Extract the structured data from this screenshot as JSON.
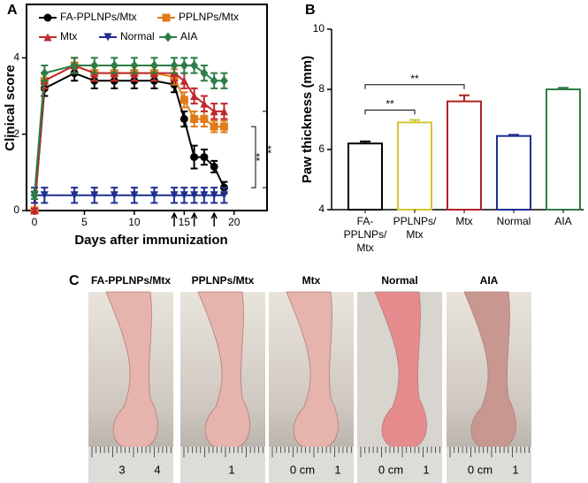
{
  "chart_data": [
    {
      "type": "line",
      "panel": "A",
      "xlabel": "Days after immunization",
      "ylabel": "Clinical score",
      "x": [
        0,
        1,
        4,
        6,
        8,
        10,
        12,
        14,
        15,
        16,
        17,
        18,
        19
      ],
      "series": [
        {
          "name": "FA-PPLNPs/Mtx",
          "color": "#000000",
          "marker": "circle",
          "values": [
            0,
            3.2,
            3.6,
            3.4,
            3.4,
            3.4,
            3.4,
            3.3,
            2.4,
            1.4,
            1.4,
            1.15,
            0.6
          ],
          "errors": [
            0.05,
            0.2,
            0.2,
            0.2,
            0.2,
            0.2,
            0.2,
            0.2,
            0.2,
            0.3,
            0.2,
            0.15,
            0.15
          ]
        },
        {
          "name": "PPLNPs/Mtx",
          "color": "#e07b1a",
          "marker": "square",
          "values": [
            0,
            3.4,
            3.8,
            3.6,
            3.6,
            3.6,
            3.6,
            3.5,
            2.9,
            2.4,
            2.4,
            2.2,
            2.2
          ],
          "errors": [
            0.05,
            0.2,
            0.2,
            0.2,
            0.2,
            0.2,
            0.2,
            0.2,
            0.2,
            0.2,
            0.2,
            0.15,
            0.15
          ]
        },
        {
          "name": "Mtx",
          "color": "#c0282d",
          "marker": "triangle",
          "values": [
            0,
            3.4,
            3.8,
            3.6,
            3.6,
            3.6,
            3.6,
            3.6,
            3.4,
            3.0,
            2.8,
            2.6,
            2.6
          ],
          "errors": [
            0.05,
            0.2,
            0.2,
            0.2,
            0.2,
            0.2,
            0.2,
            0.2,
            0.2,
            0.2,
            0.2,
            0.2,
            0.2
          ]
        },
        {
          "name": "Normal",
          "color": "#1f2f8f",
          "marker": "triangle-down",
          "values": [
            0.4,
            0.4,
            0.4,
            0.4,
            0.4,
            0.4,
            0.4,
            0.4,
            0.4,
            0.4,
            0.4,
            0.4,
            0.4
          ],
          "errors": [
            0.2,
            0.2,
            0.2,
            0.2,
            0.2,
            0.2,
            0.2,
            0.2,
            0.2,
            0.2,
            0.2,
            0.2,
            0.2
          ]
        },
        {
          "name": "AIA",
          "color": "#2e7d46",
          "marker": "diamond",
          "values": [
            0.4,
            3.6,
            3.8,
            3.8,
            3.8,
            3.8,
            3.8,
            3.8,
            3.8,
            3.8,
            3.6,
            3.4,
            3.4
          ],
          "errors": [
            0.1,
            0.2,
            0.2,
            0.2,
            0.2,
            0.2,
            0.2,
            0.2,
            0.2,
            0.2,
            0.2,
            0.2,
            0.2
          ]
        }
      ],
      "xlim": [
        -0.8,
        23.3
      ],
      "ylim": [
        0,
        5.4
      ],
      "xticks": [
        0,
        5,
        10,
        15,
        20
      ],
      "yticks": [
        0,
        2,
        4
      ],
      "legend": "top",
      "arrows_x": [
        14,
        16,
        18
      ],
      "annotations": [
        "**",
        "**"
      ]
    },
    {
      "type": "bar",
      "panel": "B",
      "ylabel": "Paw thickness (mm)",
      "categories": [
        [
          "FA-",
          "PPLNPs/",
          "Mtx"
        ],
        [
          "PPLNPs/",
          "Mtx"
        ],
        [
          "Mtx"
        ],
        [
          "Normal"
        ],
        [
          "AIA"
        ]
      ],
      "values": [
        6.2,
        6.9,
        7.6,
        6.45,
        8.0
      ],
      "errors": [
        0.07,
        0.08,
        0.2,
        0.04,
        0.05
      ],
      "colors": [
        "#000000",
        "#d4c531",
        "#b22222",
        "#1f2f8f",
        "#2e7d46"
      ],
      "ylim": [
        4,
        10
      ],
      "yticks": [
        4,
        6,
        8,
        10
      ],
      "annotations": [
        "**",
        "**"
      ]
    }
  ],
  "photos": {
    "panel": "C",
    "items": [
      {
        "title": "FA-PPLNPs/Mtx",
        "ruler": [
          "3",
          "4"
        ]
      },
      {
        "title": "PPLNPs/Mtx",
        "ruler": [
          "1"
        ]
      },
      {
        "title": "Mtx",
        "ruler": [
          "0 cm",
          "1"
        ]
      },
      {
        "title": "Normal",
        "ruler": [
          "0 cm",
          "1"
        ]
      },
      {
        "title": "AIA",
        "ruler": [
          "0 cm",
          "1"
        ]
      }
    ]
  }
}
